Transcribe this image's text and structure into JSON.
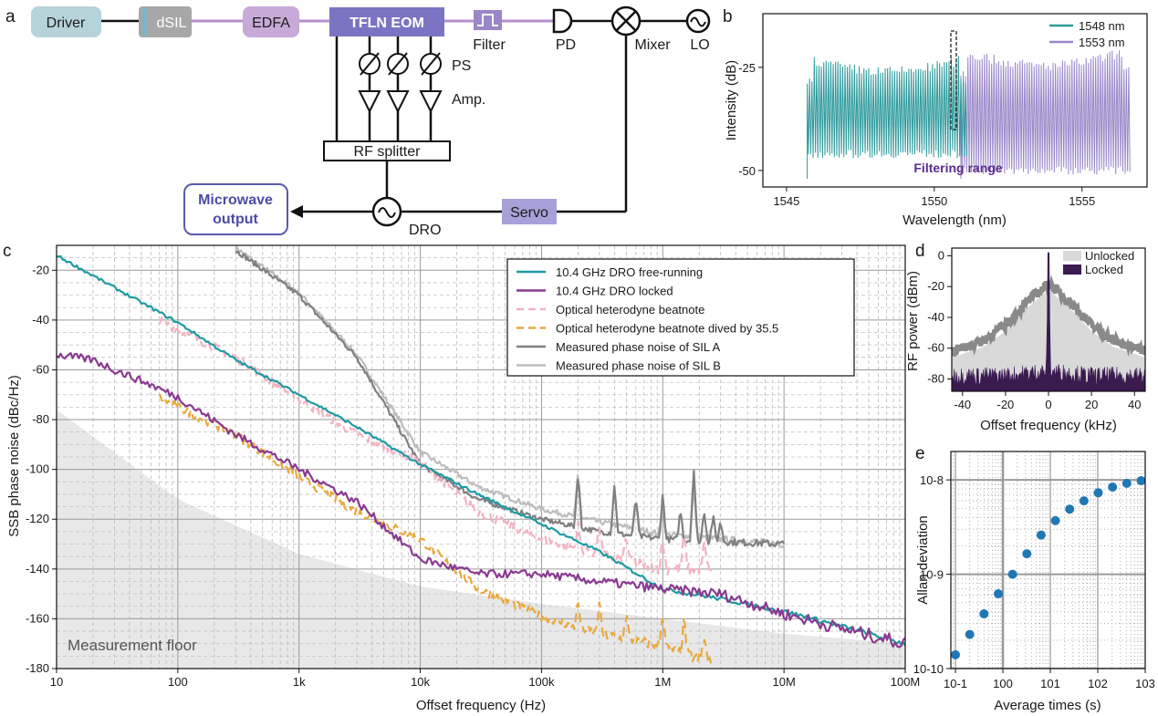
{
  "panels": {
    "a": "a",
    "b": "b",
    "c": "c",
    "d": "d",
    "e": "e"
  },
  "colors": {
    "teal": "#1f9aa3",
    "purple": "#8a3a91",
    "pink": "#f3b3c2",
    "orange": "#e8a940",
    "darkgray": "#808080",
    "lightgray": "#bdbdbd",
    "floor": "#e8e8e8",
    "block_purple": "#7a74c2",
    "block_lav": "#c8aad8",
    "driver_blue": "#b7d3da",
    "dsil_gray": "#a7a7a7",
    "b_teal": "#2e9a9c",
    "b_purple": "#9a86c8",
    "d_dark": "#3b1a4f",
    "d_light": "#d9d9d9",
    "e_blue": "#1f77b4"
  },
  "diagram": {
    "driver": "Driver",
    "dsil": "dSIL",
    "edfa": "EDFA",
    "eom": "TFLN EOM",
    "filter": "Filter",
    "pd": "PD",
    "mixer": "Mixer",
    "lo": "LO",
    "ps": "PS",
    "amp": "Amp.",
    "splitter": "RF splitter",
    "microwave_line1": "Microwave",
    "microwave_line2": "output",
    "dro": "DRO",
    "servo": "Servo"
  },
  "chart_data": [
    {
      "panel": "b",
      "type": "line",
      "xlabel": "Wavelength (nm)",
      "ylabel": "Intensity (dB)",
      "xlim": [
        1544.2,
        1557.2
      ],
      "ylim": [
        -54,
        -12
      ],
      "xticks": [
        "1545",
        "1550",
        "1555"
      ],
      "yticks": [
        "-25",
        "-50"
      ],
      "annotation": "Filtering range",
      "legend_position": "top-right",
      "series": [
        {
          "name": "1548 nm",
          "x_range": [
            1545.7,
            1551.1
          ],
          "comb_spacing_nm": 0.08,
          "peak_dB": [
            -23,
            -28
          ],
          "floor_dB": -46
        },
        {
          "name": "1553 nm",
          "x_range": [
            1550.9,
            1556.6
          ],
          "comb_spacing_nm": 0.08,
          "peak_dB": [
            -21,
            -27
          ],
          "floor_dB": -50
        }
      ]
    },
    {
      "panel": "c",
      "type": "line",
      "xscale": "log",
      "xlabel": "Offset frequency (Hz)",
      "ylabel": "SSB phase noise (dBc/Hz)",
      "xlim": [
        10,
        100000000
      ],
      "ylim": [
        -180,
        -10
      ],
      "xticks": [
        "10",
        "100",
        "1k",
        "10k",
        "100k",
        "1M",
        "10M",
        "100M"
      ],
      "yticks": [
        "-20",
        "-40",
        "-60",
        "-80",
        "-100",
        "-120",
        "-140",
        "-160",
        "-180"
      ],
      "grid": true,
      "legend_position": "top-right",
      "floor_label": "Measurement floor",
      "floor": {
        "x": [
          10,
          100,
          1000,
          10000,
          100000,
          1000000,
          10000000,
          100000000
        ],
        "y": [
          -76,
          -112,
          -134,
          -147,
          -154,
          -160,
          -166,
          -170
        ]
      },
      "series": [
        {
          "name": "10.4 GHz DRO free-running",
          "x": [
            10,
            30,
            100,
            300,
            1000,
            3000,
            10000,
            30000,
            100000,
            300000,
            1000000,
            3000000,
            10000000,
            30000000,
            100000000
          ],
          "y": [
            -14,
            -27,
            -41,
            -56,
            -70,
            -83,
            -98,
            -110,
            -122,
            -133,
            -148,
            -152,
            -157,
            -163,
            -170
          ]
        },
        {
          "name": "10.4 GHz DRO locked",
          "x": [
            10,
            20,
            30,
            60,
            100,
            300,
            1000,
            3000,
            10000,
            30000,
            100000,
            300000,
            1000000,
            3000000,
            10000000,
            30000000,
            100000000
          ],
          "y": [
            -54,
            -56,
            -60,
            -66,
            -71,
            -86,
            -100,
            -113,
            -136,
            -142,
            -142,
            -145,
            -148,
            -150,
            -158,
            -164,
            -170
          ]
        },
        {
          "name": "Optical heterodyne beatnote",
          "x": [
            70,
            100,
            300,
            1000,
            3000,
            10000,
            30000,
            100000,
            300000,
            1000000,
            2500000
          ],
          "y": [
            -40,
            -44,
            -55,
            -72,
            -86,
            -97,
            -117,
            -128,
            -134,
            -140,
            -140
          ]
        },
        {
          "name": "Optical heterodyne beatnote dived by 35.5",
          "x": [
            70,
            100,
            300,
            1000,
            3000,
            10000,
            30000,
            100000,
            300000,
            1000000,
            2500000
          ],
          "y": [
            -71,
            -75,
            -86,
            -103,
            -117,
            -128,
            -148,
            -159,
            -166,
            -171,
            -178
          ]
        },
        {
          "name": "Measured phase noise of SIL A",
          "x": [
            300,
            1000,
            3000,
            10000,
            30000,
            100000,
            300000,
            1000000,
            3000000,
            10000000
          ],
          "y": [
            -12,
            -30,
            -55,
            -98,
            -112,
            -120,
            -125,
            -128,
            -129,
            -130
          ]
        },
        {
          "name": "Measured phase noise of SIL B",
          "x": [
            300,
            1000,
            3000,
            10000,
            30000,
            100000,
            300000,
            1000000,
            3000000,
            10000000
          ],
          "y": [
            -11,
            -29,
            -54,
            -93,
            -107,
            -116,
            -121,
            -126,
            -128,
            -130
          ]
        }
      ]
    },
    {
      "panel": "d",
      "type": "area",
      "xlabel": "Offset frequency (kHz)",
      "ylabel": "RF power (dBm)",
      "xlim": [
        -45,
        45
      ],
      "ylim": [
        -88,
        5
      ],
      "xticks": [
        "-40",
        "-20",
        "0",
        "20",
        "40"
      ],
      "yticks": [
        "0",
        "-20",
        "-40",
        "-60",
        "-80"
      ],
      "legend_position": "top-right",
      "series": [
        {
          "name": "Unlocked",
          "x": [
            -45,
            -30,
            -20,
            -10,
            -5,
            0,
            5,
            10,
            20,
            30,
            45
          ],
          "y": [
            -62,
            -55,
            -45,
            -30,
            -24,
            -18,
            -24,
            -30,
            -45,
            -55,
            -62
          ]
        },
        {
          "name": "Locked",
          "x": [
            -45,
            -20,
            -1,
            0,
            1,
            20,
            45
          ],
          "y": [
            -78,
            -78,
            -75,
            2,
            -75,
            -78,
            -78
          ]
        }
      ]
    },
    {
      "panel": "e",
      "type": "scatter",
      "xscale": "log",
      "yscale": "log",
      "xlabel": "Average times (s)",
      "ylabel": "Allan deviation",
      "xlim": [
        0.08,
        1000
      ],
      "ylim": [
        1e-10,
        2e-08
      ],
      "xticks": [
        "10-1",
        "100",
        "101",
        "102",
        "103"
      ],
      "yticks": [
        "10-10",
        "10-9",
        "10-8"
      ],
      "points": {
        "x": [
          0.1,
          0.2,
          0.4,
          0.8,
          1.6,
          3.2,
          6.4,
          12.8,
          25.6,
          51.2,
          102.4,
          204.8,
          409.6,
          819.2
        ],
        "y": [
          1.4e-10,
          2.3e-10,
          3.8e-10,
          6.2e-10,
          1e-09,
          1.65e-09,
          2.6e-09,
          3.7e-09,
          4.9e-09,
          6e-09,
          7.3e-09,
          8.4e-09,
          9.2e-09,
          9.8e-09
        ]
      }
    }
  ]
}
